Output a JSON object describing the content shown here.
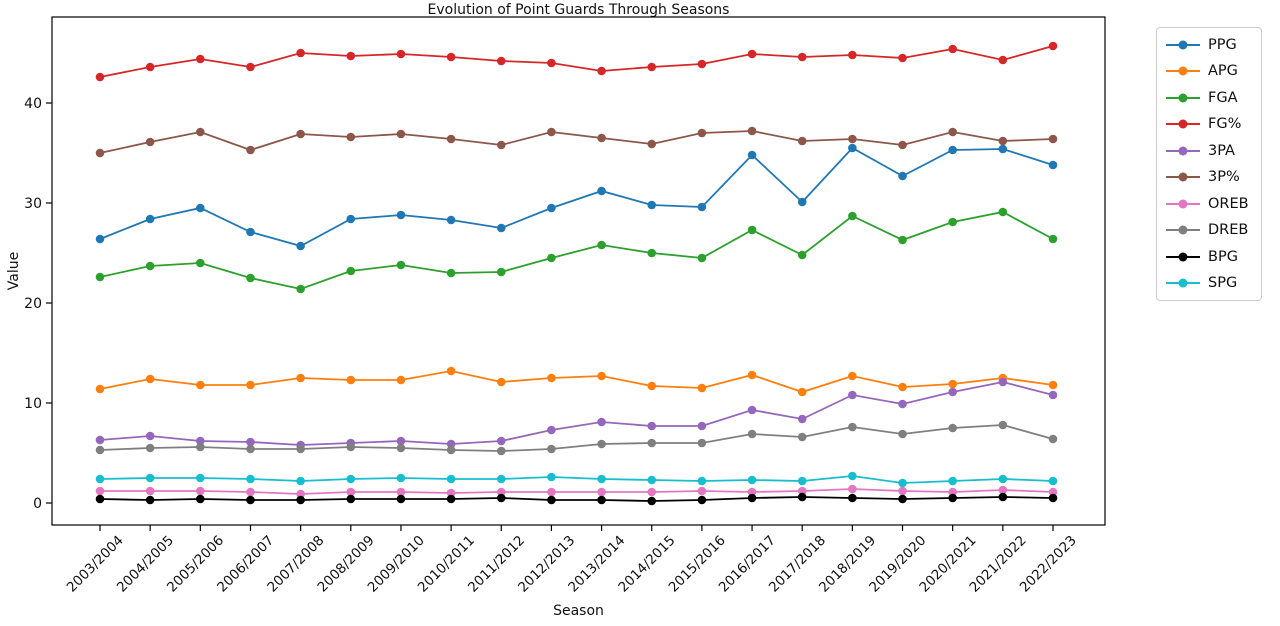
{
  "chart_data": {
    "type": "line",
    "title": "Evolution of Point Guards Through Seasons",
    "xlabel": "Season",
    "ylabel": "Value",
    "grid": false,
    "legend_position": "outside-right",
    "marker": "circle",
    "x_tick_rotation": 45,
    "yticks": [
      0,
      10,
      20,
      30,
      40
    ],
    "ylim": [
      -2.2,
      48.6
    ],
    "categories": [
      "2003/2004",
      "2004/2005",
      "2005/2006",
      "2006/2007",
      "2007/2008",
      "2008/2009",
      "2009/2010",
      "2010/2011",
      "2011/2012",
      "2012/2013",
      "2013/2014",
      "2014/2015",
      "2015/2016",
      "2016/2017",
      "2017/2018",
      "2018/2019",
      "2019/2020",
      "2020/2021",
      "2021/2022",
      "2022/2023"
    ],
    "series": [
      {
        "name": "PPG",
        "color": "#1f77b4",
        "values": [
          26.4,
          28.4,
          29.5,
          27.1,
          25.7,
          28.4,
          28.8,
          28.3,
          27.5,
          29.5,
          31.2,
          29.8,
          29.6,
          34.8,
          30.1,
          35.5,
          32.7,
          35.3,
          35.4,
          33.8
        ]
      },
      {
        "name": "APG",
        "color": "#ff7f0e",
        "values": [
          11.4,
          12.4,
          11.8,
          11.8,
          12.5,
          12.3,
          12.3,
          13.2,
          12.1,
          12.5,
          12.7,
          11.7,
          11.5,
          12.8,
          11.1,
          12.7,
          11.6,
          11.9,
          12.5,
          11.8
        ]
      },
      {
        "name": "FGA",
        "color": "#2ca02c",
        "values": [
          22.6,
          23.7,
          24.0,
          22.5,
          21.4,
          23.2,
          23.8,
          23.0,
          23.1,
          24.5,
          25.8,
          25.0,
          24.5,
          27.3,
          24.8,
          28.7,
          26.3,
          28.1,
          29.1,
          26.4
        ]
      },
      {
        "name": "FG%",
        "color": "#d62728",
        "values": [
          42.6,
          43.6,
          44.4,
          43.6,
          45.0,
          44.7,
          44.9,
          44.6,
          44.2,
          44.0,
          43.2,
          43.6,
          43.9,
          44.9,
          44.6,
          44.8,
          44.5,
          45.4,
          44.3,
          45.7
        ]
      },
      {
        "name": "3PA",
        "color": "#9467bd",
        "values": [
          6.3,
          6.7,
          6.2,
          6.1,
          5.8,
          6.0,
          6.2,
          5.9,
          6.2,
          7.3,
          8.1,
          7.7,
          7.7,
          9.3,
          8.4,
          10.8,
          9.9,
          11.1,
          12.1,
          10.8
        ]
      },
      {
        "name": "3P%",
        "color": "#8c564b",
        "values": [
          35.0,
          36.1,
          37.1,
          35.3,
          36.9,
          36.6,
          36.9,
          36.4,
          35.8,
          37.1,
          36.5,
          35.9,
          37.0,
          37.2,
          36.2,
          36.4,
          35.8,
          37.1,
          36.2,
          36.4
        ]
      },
      {
        "name": "OREB",
        "color": "#e377c2",
        "values": [
          1.2,
          1.2,
          1.2,
          1.1,
          0.9,
          1.1,
          1.1,
          1.0,
          1.1,
          1.1,
          1.1,
          1.1,
          1.2,
          1.1,
          1.2,
          1.4,
          1.2,
          1.1,
          1.3,
          1.1
        ]
      },
      {
        "name": "DREB",
        "color": "#7f7f7f",
        "values": [
          5.3,
          5.5,
          5.6,
          5.4,
          5.4,
          5.6,
          5.5,
          5.3,
          5.2,
          5.4,
          5.9,
          6.0,
          6.0,
          6.9,
          6.6,
          7.6,
          6.9,
          7.5,
          7.8,
          6.4
        ]
      },
      {
        "name": "BPG",
        "color": "#000000",
        "values": [
          0.4,
          0.3,
          0.4,
          0.3,
          0.3,
          0.4,
          0.4,
          0.4,
          0.5,
          0.3,
          0.3,
          0.2,
          0.3,
          0.5,
          0.6,
          0.5,
          0.4,
          0.5,
          0.6,
          0.5
        ]
      },
      {
        "name": "SPG",
        "color": "#17becf",
        "values": [
          2.4,
          2.5,
          2.5,
          2.4,
          2.2,
          2.4,
          2.5,
          2.4,
          2.4,
          2.6,
          2.4,
          2.3,
          2.2,
          2.3,
          2.2,
          2.7,
          2.0,
          2.2,
          2.4,
          2.2
        ]
      }
    ]
  }
}
